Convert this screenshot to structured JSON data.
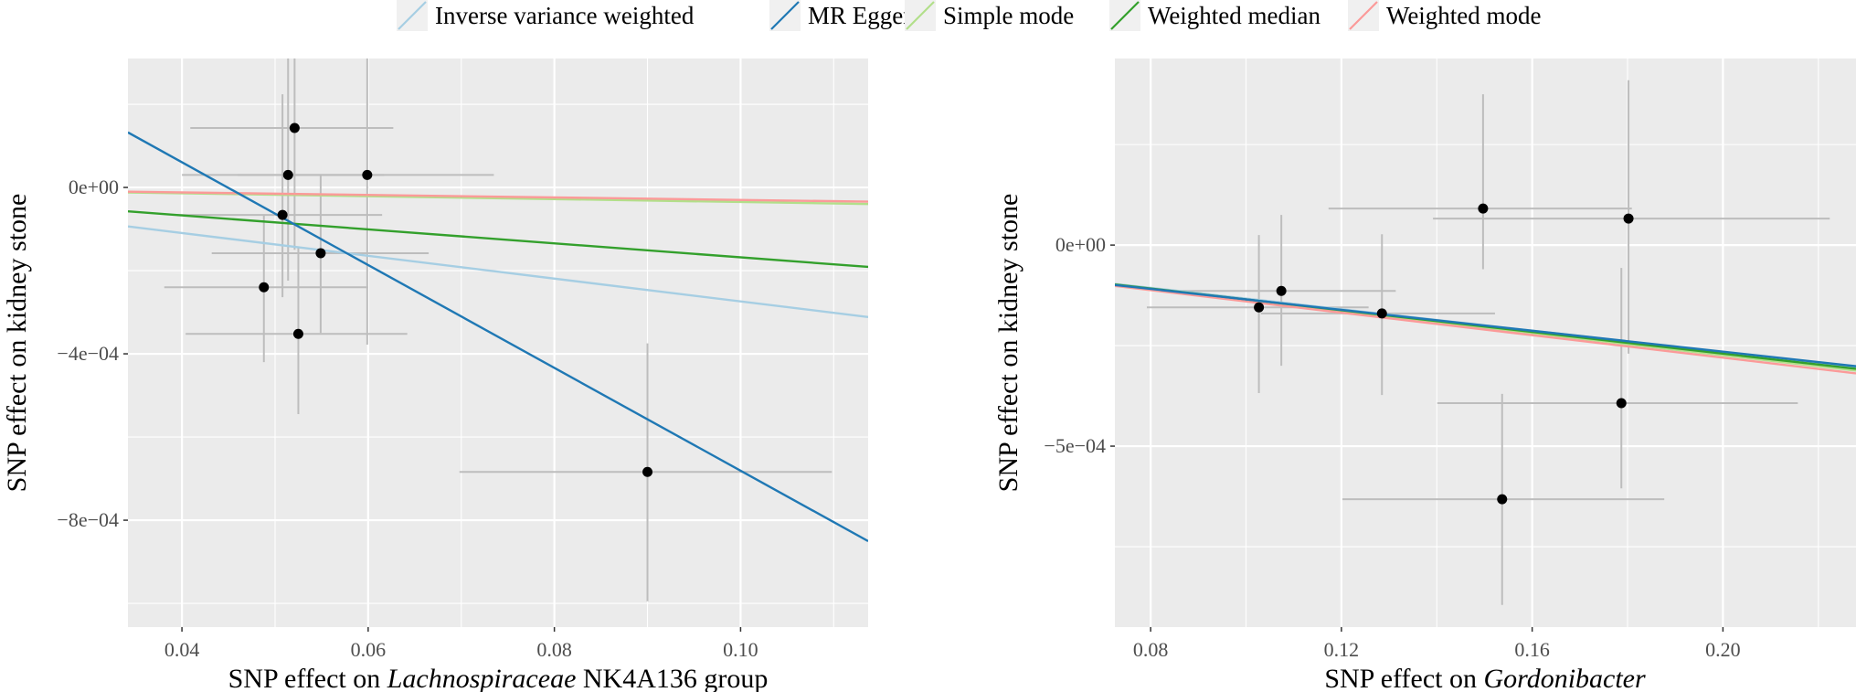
{
  "legend": {
    "items": [
      {
        "label": "Inverse variance weighted",
        "color": "#a6cee3"
      },
      {
        "label": "MR Egger",
        "color": "#1f78b4"
      },
      {
        "label": "Simple mode",
        "color": "#b2df8a"
      },
      {
        "label": "Weighted median",
        "color": "#33a02c"
      },
      {
        "label": "Weighted mode",
        "color": "#fb9a99"
      }
    ]
  },
  "chart_data": [
    {
      "type": "scatter",
      "title": "",
      "xlabel_prefix": "SNP effect on ",
      "xlabel_italic": "Lachnospiraceae",
      "xlabel_suffix": " NK4A136 group",
      "ylabel": "SNP effect on kidney stone",
      "xlim": [
        0.0342,
        0.1137
      ],
      "ylim": [
        -0.001057,
        0.00031
      ],
      "x_ticks": [
        0.04,
        0.06,
        0.08,
        0.1
      ],
      "x_tick_labels": [
        "0.04",
        "0.06",
        "0.08",
        "0.10"
      ],
      "x_minor": [
        0.03,
        0.05,
        0.07,
        0.09,
        0.11
      ],
      "y_ticks": [
        0,
        -0.0004,
        -0.0008
      ],
      "y_tick_labels": [
        "0e+00",
        "−4e−04",
        "−8e−04"
      ],
      "y_minor": [
        0.0002,
        -0.0002,
        -0.0006,
        -0.001
      ],
      "grid": true,
      "legend_position": "top",
      "points": [
        {
          "x": 0.0521,
          "y": 0.000143,
          "x_lo": 0.0409,
          "x_hi": 0.0627,
          "y_lo": -0.00015,
          "y_hi": 0.00044
        },
        {
          "x": 0.0514,
          "y": 3e-05,
          "x_lo": 0.04,
          "x_hi": 0.0617,
          "y_lo": -0.000224,
          "y_hi": 0.00037
        },
        {
          "x": 0.0599,
          "y": 3e-05,
          "x_lo": 0.046,
          "x_hi": 0.0735,
          "y_lo": -0.000378,
          "y_hi": 0.000444
        },
        {
          "x": 0.0508,
          "y": -6.6e-05,
          "x_lo": 0.0395,
          "x_hi": 0.0615,
          "y_lo": -0.000264,
          "y_hi": 0.000224
        },
        {
          "x": 0.0549,
          "y": -0.000158,
          "x_lo": 0.0432,
          "x_hi": 0.0665,
          "y_lo": -0.00035,
          "y_hi": 3e-05
        },
        {
          "x": 0.0488,
          "y": -0.00024,
          "x_lo": 0.0381,
          "x_hi": 0.06,
          "y_lo": -0.00042,
          "y_hi": -6.6e-05
        },
        {
          "x": 0.0525,
          "y": -0.000352,
          "x_lo": 0.0404,
          "x_hi": 0.0642,
          "y_lo": -0.000545,
          "y_hi": -0.000143
        },
        {
          "x": 0.09,
          "y": -0.000684,
          "x_lo": 0.0698,
          "x_hi": 0.1098,
          "y_lo": -0.000995,
          "y_hi": -0.000375
        }
      ],
      "lines": [
        {
          "method": "Inverse variance weighted",
          "intercept": 0,
          "slope": -0.00274
        },
        {
          "method": "MR Egger",
          "intercept": 0.000555,
          "slope": -0.01236
        },
        {
          "method": "Simple mode",
          "intercept": 0,
          "slope": -0.00035
        },
        {
          "method": "Weighted median",
          "intercept": 0,
          "slope": -0.00168
        },
        {
          "method": "Weighted mode",
          "intercept": 0,
          "slope": -0.0003
        }
      ]
    },
    {
      "type": "scatter",
      "title": "",
      "xlabel_prefix": "SNP effect on ",
      "xlabel_italic": "Gordonibacter",
      "xlabel_suffix": "",
      "ylabel": "SNP effect on kidney stone",
      "xlim": [
        0.0725,
        0.2279
      ],
      "ylim": [
        -0.00095,
        0.000464
      ],
      "x_ticks": [
        0.08,
        0.12,
        0.16,
        0.2
      ],
      "x_tick_labels": [
        "0.08",
        "0.12",
        "0.16",
        "0.20"
      ],
      "x_minor": [
        0.1,
        0.14,
        0.18,
        0.22
      ],
      "y_ticks": [
        0,
        -0.0005
      ],
      "y_tick_labels": [
        "0e+00",
        "−5e−04"
      ],
      "y_minor": [
        0.00025,
        -0.00025,
        -0.00075
      ],
      "grid": true,
      "legend_position": "top",
      "points": [
        {
          "x": 0.1027,
          "y": -0.000155,
          "x_lo": 0.0792,
          "x_hi": 0.1257,
          "y_lo": -0.000368,
          "y_hi": 2.5e-05
        },
        {
          "x": 0.1074,
          "y": -0.000114,
          "x_lo": 0.0851,
          "x_hi": 0.1314,
          "y_lo": -0.0003,
          "y_hi": 7.5e-05
        },
        {
          "x": 0.1285,
          "y": -0.00017,
          "x_lo": 0.1031,
          "x_hi": 0.1522,
          "y_lo": -0.000373,
          "y_hi": 2.7e-05
        },
        {
          "x": 0.1497,
          "y": 9.1e-05,
          "x_lo": 0.1173,
          "x_hi": 0.1809,
          "y_lo": -6e-05,
          "y_hi": 0.000375
        },
        {
          "x": 0.1802,
          "y": 6.6e-05,
          "x_lo": 0.1392,
          "x_hi": 0.2224,
          "y_lo": -0.00027,
          "y_hi": 0.00041
        },
        {
          "x": 0.1787,
          "y": -0.000393,
          "x_lo": 0.1401,
          "x_hi": 0.2157,
          "y_lo": -0.000605,
          "y_hi": -5.7e-05
        },
        {
          "x": 0.1537,
          "y": -0.000632,
          "x_lo": 0.1202,
          "x_hi": 0.1877,
          "y_lo": -0.000895,
          "y_hi": -0.00037
        }
      ],
      "lines": [
        {
          "method": "Inverse variance weighted",
          "intercept": 0,
          "slope": -0.00133
        },
        {
          "method": "MR Egger",
          "intercept": -5e-06,
          "slope": -0.0013
        },
        {
          "method": "Simple mode",
          "intercept": 0,
          "slope": -0.00137
        },
        {
          "method": "Weighted median",
          "intercept": 0,
          "slope": -0.00135
        },
        {
          "method": "Weighted mode",
          "intercept": 0,
          "slope": -0.0014
        }
      ]
    }
  ]
}
